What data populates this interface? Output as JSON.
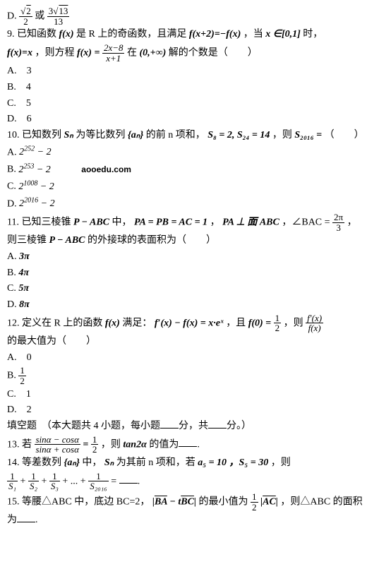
{
  "optD": {
    "label": "D.",
    "or": "或"
  },
  "q9": {
    "text1": "9. 已知函数",
    "fx": "f(x)",
    "text2": "是 R 上的奇函数，且满足",
    "eq1": "f(x+2)=−f(x)",
    "text3": "，当",
    "cond": "x ∈[0,1]",
    "text4": "时，",
    "line2a": "f(x)=x",
    "line2b": "，则方程",
    "eqtop": "2x−8",
    "eqbot": "x+1",
    "line2c": "在",
    "domain": "(0,+∞)",
    "line2d": "解的个数是（　　）",
    "A": "A.　3",
    "B": "B.　4",
    "C": "C.　5",
    "D": "D.　6"
  },
  "q10": {
    "t1": "10. 已知数列",
    "Sn": "Sₙ",
    "t2": "为等比数列",
    "an": "{aₙ}",
    "t3": "的前 n 项和，",
    "cond": "S₈ = 2, S₂₄ = 14",
    "t4": "，则",
    "res": "S₂₀₁₆ =",
    "t5": "（　　）",
    "A": "A.",
    "B": "B.",
    "C": "C.",
    "D": "D."
  },
  "watermark": "aooedu.com",
  "q11": {
    "t1": "11. 已知三棱锥",
    "p": "P − ABC",
    "t2": "中，",
    "cond1": "PA = PB = AC = 1",
    "t3": "，",
    "cond2": "PA ⊥ 面 ABC",
    "t4": "，∠BAC =",
    "t5": "，",
    "l2a": "则三棱锥",
    "l2b": "的外接球的表面积为（　　）",
    "A": "A.",
    "B": "B.",
    "C": "C.",
    "D": "D."
  },
  "q12": {
    "t1": "12. 定义在 R 上的函数",
    "fx": "f(x)",
    "t2": "满足：",
    "eq": "f′(x) − f(x) = x·eˣ",
    "t3": "，且",
    "f0": "f(0) =",
    "t4": "，则",
    "t5": "",
    "l2": "的最大值为（　　）",
    "A": "A.　0",
    "B": "B.",
    "C": "C.　1",
    "D": "D.　2"
  },
  "fill": {
    "title": "填空题　（本大题共 4 小题，每小题",
    "t2": "分，共",
    "t3": "分。）"
  },
  "q13": {
    "t1": "13. 若",
    "top": "sinα − cosα",
    "bot": "sinα + cosα",
    "t2": "，则",
    "tan": "tan2α",
    "t3": "的值为",
    "t4": "."
  },
  "q14": {
    "t1": "14. 等差数列",
    "an": "{aₙ}",
    "t2": "中，",
    "Sn": "Sₙ",
    "t3": "为其前 n 项和，若",
    "cond": "a₅ = 10 ，S₅ = 30",
    "t4": "，则",
    "t5": "."
  },
  "q15": {
    "t1": "15. 等腰△ABC 中，底边 BC=2，",
    "t2": "的最小值为",
    "t3": "，则△ABC 的面积",
    "l2": "为",
    "l3": "."
  }
}
